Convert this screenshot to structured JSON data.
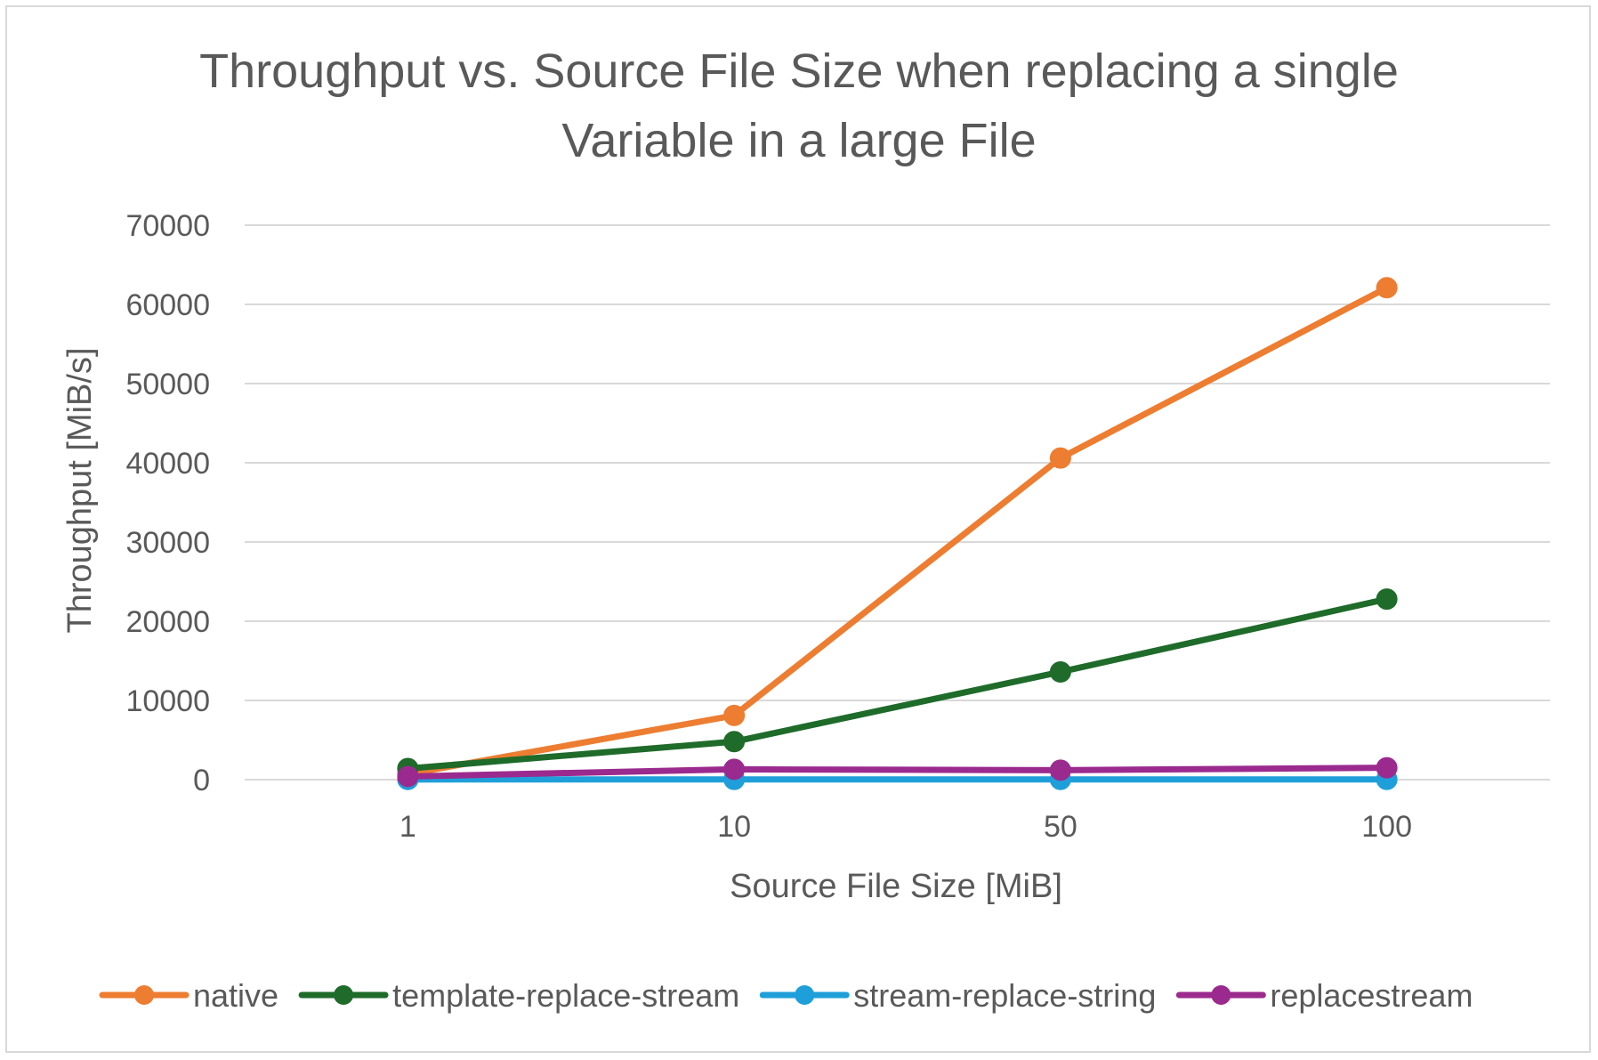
{
  "chart_data": {
    "type": "line",
    "title_lines": [
      "Throughput vs. Source File Size when replacing a single",
      "Variable in a large File"
    ],
    "xlabel": "Source File Size [MiB]",
    "ylabel": "Throughput [MiB/s]",
    "categories": [
      "1",
      "10",
      "50",
      "100"
    ],
    "ylim": [
      0,
      70000
    ],
    "yticks": [
      "0",
      "10000",
      "20000",
      "30000",
      "40000",
      "50000",
      "60000",
      "70000"
    ],
    "grid": true,
    "legend_position": "bottom",
    "series": [
      {
        "name": "native",
        "color": "#ed7d31",
        "values": [
          700,
          8100,
          40600,
          62100
        ]
      },
      {
        "name": "template-replace-stream",
        "color": "#1e6b2a",
        "values": [
          1400,
          4800,
          13600,
          22800
        ]
      },
      {
        "name": "stream-replace-string",
        "color": "#1f9fd9",
        "values": [
          20,
          30,
          30,
          30
        ]
      },
      {
        "name": "replacestream",
        "color": "#9b2a8f",
        "values": [
          400,
          1300,
          1200,
          1500
        ]
      }
    ]
  }
}
